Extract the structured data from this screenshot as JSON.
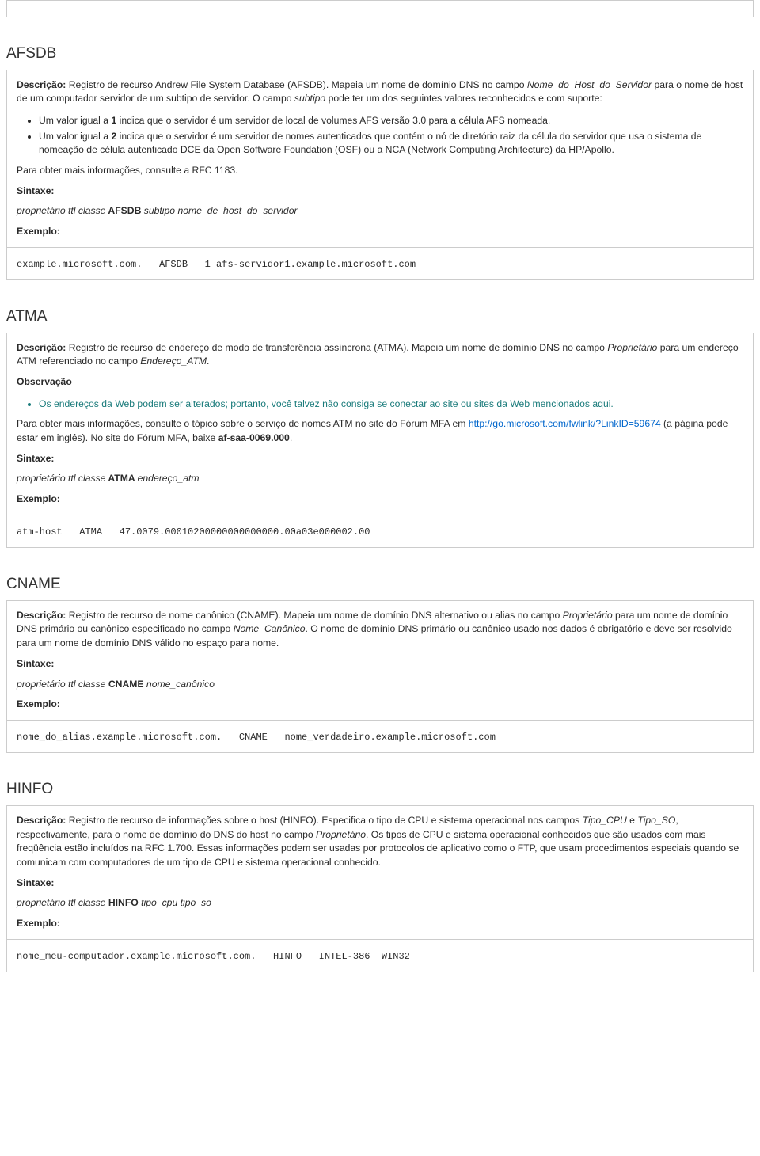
{
  "labels": {
    "descricao": "Descrição:",
    "sintaxe": "Sintaxe:",
    "exemplo": "Exemplo:",
    "observacao": "Observação"
  },
  "afsdb": {
    "title": "AFSDB",
    "desc_pre": " Registro de recurso Andrew File System Database (AFSDB). Mapeia um nome de domínio DNS no campo ",
    "desc_i1": "Nome_do_Host_do_Servidor",
    "desc_mid": " para o nome de host de um computador servidor de um subtipo de servidor. O campo ",
    "desc_i2": "subtipo",
    "desc_post": " pode ter um dos seguintes valores reconhecidos e com suporte:",
    "li1_a": "Um valor igual a ",
    "li1_b": "1",
    "li1_c": " indica que o servidor é um servidor de local de volumes AFS versão 3.0 para a célula AFS nomeada.",
    "li2_a": "Um valor igual a ",
    "li2_b": "2",
    "li2_c": " indica que o servidor é um servidor de nomes autenticados que contém o nó de diretório raiz da célula do servidor que usa o sistema de nomeação de célula autenticado DCE da Open Software Foundation (OSF) ou a NCA (Network Computing Architecture) da HP/Apollo.",
    "after_list": "Para obter mais informações, consulte a RFC 1183.",
    "syntax_pre": "proprietário ttl classe",
    "syntax_b": " AFSDB ",
    "syntax_post": "subtipo nome_de_host_do_servidor",
    "example": "example.microsoft.com.   AFSDB   1 afs-servidor1.example.microsoft.com"
  },
  "atma": {
    "title": "ATMA",
    "desc_pre": " Registro de recurso de endereço de modo de transferência assíncrona (ATMA). Mapeia um nome de domínio DNS no campo ",
    "desc_i1": "Proprietário",
    "desc_mid": " para um endereço ATM referenciado no campo ",
    "desc_i2": "Endereço_ATM",
    "desc_post": ".",
    "note_li": "Os endereços da Web podem ser alterados; portanto, você talvez não consiga se conectar ao site ou sites da Web mencionados aqui.",
    "after1": "Para obter mais informações, consulte o tópico sobre o serviço de nomes ATM no site do Fórum MFA em ",
    "link": "http://go.microsoft.com/fwlink/?LinkID=59674",
    "after2": " (a página pode estar em inglês). No site do Fórum MFA, baixe ",
    "after_b": "af-saa-0069.000",
    "after3": ".",
    "syntax_pre": "proprietário ttl classe",
    "syntax_b": " ATMA ",
    "syntax_post": "endereço_atm",
    "example": "atm-host   ATMA   47.0079.00010200000000000000.00a03e000002.00"
  },
  "cname": {
    "title": "CNAME",
    "desc_pre": " Registro de recurso de nome canônico (CNAME). Mapeia um nome de domínio DNS alternativo ou alias no campo ",
    "desc_i1": "Proprietário",
    "desc_mid": " para um nome de domínio DNS primário ou canônico especificado no campo ",
    "desc_i2": "Nome_Canônico",
    "desc_post": ". O nome de domínio DNS primário ou canônico usado nos dados é obrigatório e deve ser resolvido para um nome de domínio DNS válido no espaço para nome.",
    "syntax_pre": "proprietário ttl classe",
    "syntax_b": " CNAME ",
    "syntax_post": "nome_canônico",
    "example": "nome_do_alias.example.microsoft.com.   CNAME   nome_verdadeiro.example.microsoft.com"
  },
  "hinfo": {
    "title": "HINFO",
    "desc_pre": " Registro de recurso de informações sobre o host (HINFO). Especifica o tipo de CPU e sistema operacional nos campos ",
    "desc_i1": "Tipo_CPU",
    "desc_mid1": " e ",
    "desc_i2": "Tipo_SO",
    "desc_mid2": ", respectivamente, para o nome de domínio do DNS do host no campo ",
    "desc_i3": "Proprietário",
    "desc_post": ". Os tipos de CPU e sistema operacional conhecidos que são usados com mais freqüência estão incluídos na RFC 1.700. Essas informações podem ser usadas por protocolos de aplicativo como o FTP, que usam procedimentos especiais quando se comunicam com computadores de um tipo de CPU e sistema operacional conhecido.",
    "syntax_pre": "proprietário ttl classe",
    "syntax_b": " HINFO ",
    "syntax_post": "tipo_cpu tipo_so",
    "example": "nome_meu-computador.example.microsoft.com.   HINFO   INTEL-386  WIN32"
  }
}
